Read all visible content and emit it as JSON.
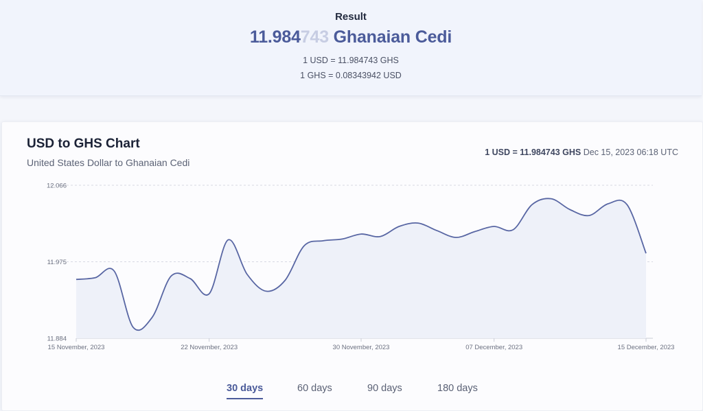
{
  "result": {
    "label": "Result",
    "amount_main": "11.984",
    "amount_faded": "743",
    "currency_name": "Ghanaian Cedi",
    "rate_forward": "1 USD = 11.984743 GHS",
    "rate_reverse": "1 GHS = 0.08343942 USD"
  },
  "chart": {
    "title": "USD to GHS Chart",
    "subtitle": "United States Dollar to Ghanaian Cedi",
    "rate_strong": "1 USD = 11.984743 GHS",
    "rate_time": "Dec 15, 2023 06:18 UTC"
  },
  "tabs": [
    {
      "label": "30 days",
      "active": true
    },
    {
      "label": "60 days",
      "active": false
    },
    {
      "label": "90 days",
      "active": false
    },
    {
      "label": "180 days",
      "active": false
    }
  ],
  "colors": {
    "line": "#5866a3",
    "area": "#eef1f9",
    "grid": "#d6d9e2"
  },
  "chart_data": {
    "type": "area",
    "title": "USD to GHS Chart",
    "ylim": [
      11.884,
      12.066
    ],
    "y_ticks": [
      "12.066",
      "11.975",
      "11.884"
    ],
    "x_tick_labels": [
      "15 November, 2023",
      "22 November, 2023",
      "30 November, 2023",
      "07 December, 2023",
      "15 December, 2023"
    ],
    "grid": "horizontal dashed",
    "series": [
      {
        "values": [
          {
            "x": "2023-11-15",
            "y": 11.954
          },
          {
            "x": "2023-11-16",
            "y": 11.956
          },
          {
            "x": "2023-11-17",
            "y": 11.964
          },
          {
            "x": "2023-11-18",
            "y": 11.897
          },
          {
            "x": "2023-11-19",
            "y": 11.909
          },
          {
            "x": "2023-11-20",
            "y": 11.958
          },
          {
            "x": "2023-11-21",
            "y": 11.955
          },
          {
            "x": "2023-11-22",
            "y": 11.937
          },
          {
            "x": "2023-11-23",
            "y": 12.001
          },
          {
            "x": "2023-11-24",
            "y": 11.96
          },
          {
            "x": "2023-11-25",
            "y": 11.94
          },
          {
            "x": "2023-11-26",
            "y": 11.953
          },
          {
            "x": "2023-11-27",
            "y": 11.994
          },
          {
            "x": "2023-11-28",
            "y": 12.0
          },
          {
            "x": "2023-11-29",
            "y": 12.002
          },
          {
            "x": "2023-11-30",
            "y": 12.008
          },
          {
            "x": "2023-12-01",
            "y": 12.005
          },
          {
            "x": "2023-12-02",
            "y": 12.017
          },
          {
            "x": "2023-12-03",
            "y": 12.021
          },
          {
            "x": "2023-12-04",
            "y": 12.012
          },
          {
            "x": "2023-12-05",
            "y": 12.004
          },
          {
            "x": "2023-12-06",
            "y": 12.011
          },
          {
            "x": "2023-12-07",
            "y": 12.017
          },
          {
            "x": "2023-12-08",
            "y": 12.013
          },
          {
            "x": "2023-12-09",
            "y": 12.043
          },
          {
            "x": "2023-12-10",
            "y": 12.05
          },
          {
            "x": "2023-12-11",
            "y": 12.037
          },
          {
            "x": "2023-12-12",
            "y": 12.03
          },
          {
            "x": "2023-12-13",
            "y": 12.044
          },
          {
            "x": "2023-12-14",
            "y": 12.043
          },
          {
            "x": "2023-12-15",
            "y": 11.985
          }
        ]
      }
    ]
  }
}
